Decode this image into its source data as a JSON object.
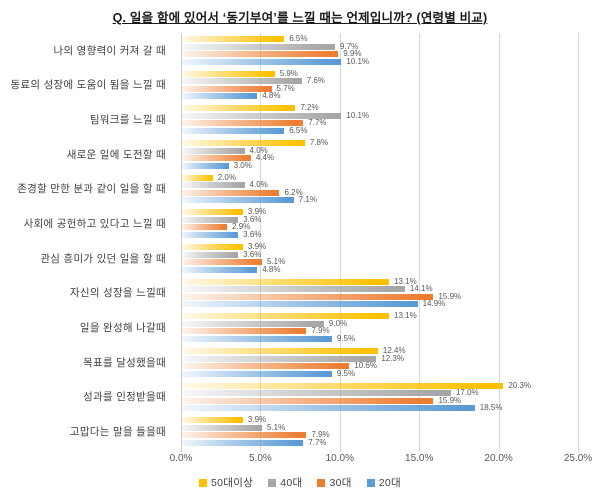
{
  "chart_data": {
    "type": "bar",
    "orientation": "horizontal",
    "title": "Q. 일을 함에 있어서 ‘동기부여’를 느낄 때는 언제입니까? (연령별 비교)",
    "categories": [
      "나의 영향력이 커져 갈 때",
      "동료의 성장에 도움이 됨을 느낄 때",
      "팀워크를 느낄 때",
      "새로운 일에 도전할 때",
      "존경할 만한 분과 같이 일을 할 때",
      "사회에 공헌하고 있다고 느낄 때",
      "관심 흥미가 있던 일을 할 때",
      "자신의 성장을 느낄때",
      "일을 완성해 나갈때",
      "목표를 달성했을때",
      "성과를 인정받을때",
      "고맙다는 말을 들을때"
    ],
    "series": [
      {
        "name": "50대이상",
        "color": "#FFC000",
        "values": [
          6.5,
          5.9,
          7.2,
          7.8,
          2.0,
          3.9,
          3.9,
          13.1,
          13.1,
          12.4,
          20.3,
          3.9
        ]
      },
      {
        "name": "40대",
        "color": "#A6A6A6",
        "values": [
          9.7,
          7.6,
          10.1,
          4.0,
          4.0,
          3.6,
          3.6,
          14.1,
          9.0,
          12.3,
          17.0,
          5.1
        ]
      },
      {
        "name": "30대",
        "color": "#ED7D31",
        "values": [
          9.9,
          5.7,
          7.7,
          4.4,
          6.2,
          2.9,
          5.1,
          15.9,
          7.9,
          10.6,
          15.9,
          7.9
        ]
      },
      {
        "name": "20대",
        "color": "#5B9BD5",
        "values": [
          10.1,
          4.8,
          6.5,
          3.0,
          7.1,
          3.6,
          4.8,
          14.9,
          9.5,
          9.5,
          18.5,
          7.7
        ]
      }
    ],
    "xlim": [
      0,
      25
    ],
    "x_ticks": [
      "0.0%",
      "5.0%",
      "10.0%",
      "15.0%",
      "20.0%",
      "25.0%"
    ],
    "grid": true,
    "legend_position": "bottom",
    "value_labels": "outside-end, one decimal + %"
  }
}
